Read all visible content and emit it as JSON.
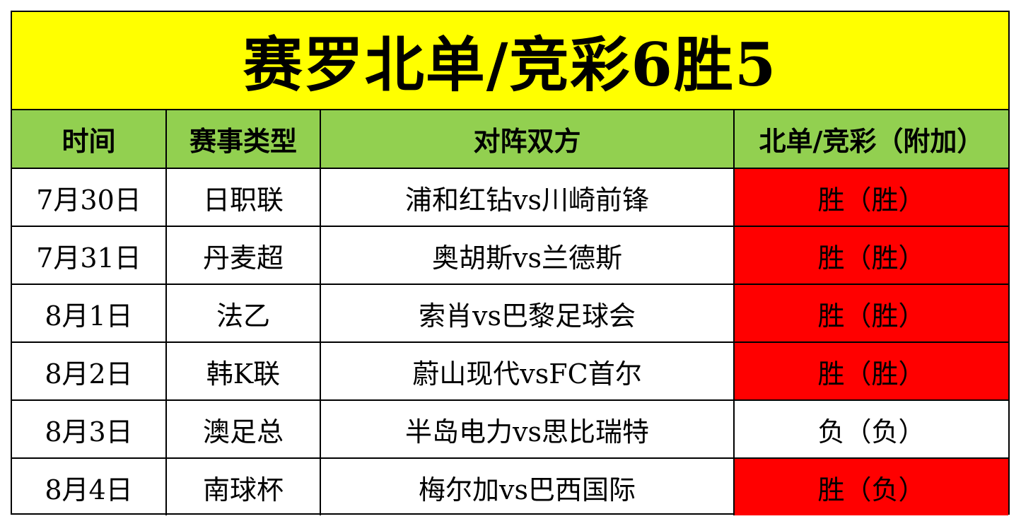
{
  "title": "赛罗北单/竞彩6胜5",
  "headers": [
    "时间",
    "赛事类型",
    "对阵双方",
    "北单/竞彩（附加）"
  ],
  "rows": [
    {
      "date": "7月30日",
      "league": "日职联",
      "match": "浦和红钻vs川崎前锋",
      "result": "胜（胜）",
      "highlight": "#ff0000"
    },
    {
      "date": "7月31日",
      "league": "丹麦超",
      "match": "奥胡斯vs兰德斯",
      "result": "胜（胜）",
      "highlight": "#ff0000"
    },
    {
      "date": "8月1日",
      "league": "法乙",
      "match": "索肖vs巴黎足球会",
      "result": "胜（胜）",
      "highlight": "#ff0000"
    },
    {
      "date": "8月2日",
      "league": "韩K联",
      "match": "蔚山现代vsFC首尔",
      "result": "胜（胜）",
      "highlight": "#ff0000"
    },
    {
      "date": "8月3日",
      "league": "澳足总",
      "match": "半岛电力vs思比瑞特",
      "result": "负（负）",
      "highlight": "#ffffff"
    },
    {
      "date": "8月4日",
      "league": "南球杯",
      "match": "梅尔加vs巴西国际",
      "result": "胜（负）",
      "highlight": "#ff0000"
    }
  ],
  "colors": {
    "title_bg": "#ffff00",
    "header_bg": "#92d050",
    "hit": "#ff0000"
  }
}
